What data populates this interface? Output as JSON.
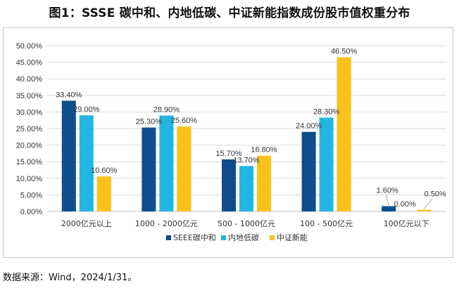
{
  "header": {
    "title": "图1：SSSE 碳中和、内地低碳、中证新能指数成份股市值权重分布"
  },
  "footer": {
    "source": "数据来源：Wind，2024/1/31。"
  },
  "chart_data": {
    "type": "bar",
    "title": "",
    "xlabel": "",
    "ylabel": "",
    "ylim": [
      0,
      50
    ],
    "y_tick_labels": [
      "0.00%",
      "5.00%",
      "10.00%",
      "15.00%",
      "20.00%",
      "25.00%",
      "30.00%",
      "35.00%",
      "40.00%",
      "45.00%",
      "50.00%"
    ],
    "grid": true,
    "legend_position": "bottom",
    "categories": [
      "2000亿元以上",
      "1000 - 2000亿元",
      "500 - 1000亿元",
      "100 - 500亿元",
      "100亿元以下"
    ],
    "series": [
      {
        "name": "SEEE碳中和",
        "color": "#0f4e8c",
        "values": [
          33.4,
          25.3,
          15.7,
          24.0,
          1.6
        ],
        "labels": [
          "33.40%",
          "25.30%",
          "15.70%",
          "24.00%",
          "1.60%"
        ]
      },
      {
        "name": "内地低碳",
        "color": "#23b5e2",
        "values": [
          29.0,
          28.9,
          13.7,
          28.3,
          0.0
        ],
        "labels": [
          "29.00%",
          "28.90%",
          "13.70%",
          "28.30%",
          "0.00%"
        ]
      },
      {
        "name": "中证新能",
        "color": "#fcc21b",
        "values": [
          10.6,
          25.6,
          16.8,
          46.5,
          0.5
        ],
        "labels": [
          "10.60%",
          "25.60%",
          "16.80%",
          "46.50%",
          "0.50%"
        ]
      }
    ]
  }
}
